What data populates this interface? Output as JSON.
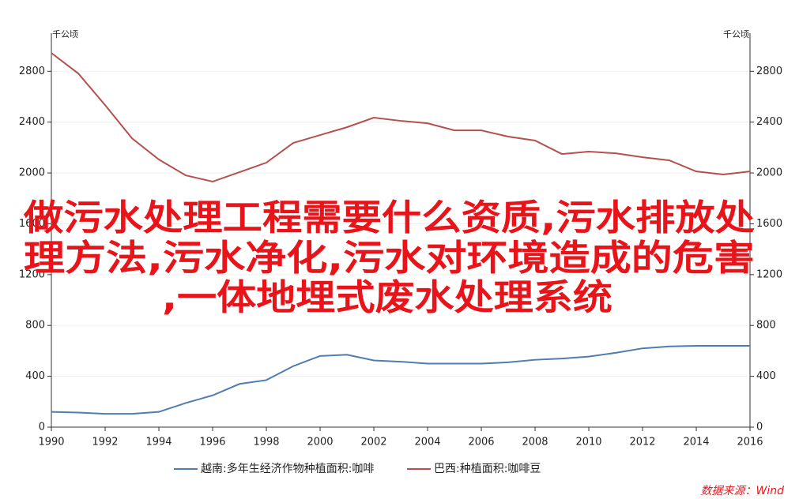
{
  "chart_data": {
    "type": "line",
    "y_label": "千公顷",
    "y2_label": "千公顷",
    "x": [
      1990,
      1991,
      1992,
      1993,
      1994,
      1995,
      1996,
      1997,
      1998,
      1999,
      2000,
      2001,
      2002,
      2003,
      2004,
      2005,
      2006,
      2007,
      2008,
      2009,
      2010,
      2011,
      2012,
      2013,
      2014,
      2015,
      2016
    ],
    "series": [
      {
        "name": "越南:多年生经济作物种植面积:咖啡",
        "color": "#4f7db0",
        "axis": "y",
        "values": [
          120,
          115,
          105,
          105,
          120,
          190,
          250,
          340,
          370,
          480,
          560,
          570,
          525,
          515,
          500,
          500,
          500,
          510,
          530,
          540,
          555,
          585,
          620,
          635,
          640,
          640,
          640
        ]
      },
      {
        "name": "巴西:种植面积:咖啡豆",
        "color": "#b5504f",
        "axis": "y2",
        "values": [
          2944,
          2783,
          2534,
          2273,
          2106,
          1981,
          1932,
          2006,
          2081,
          2236,
          2298,
          2360,
          2435,
          2410,
          2391,
          2335,
          2335,
          2286,
          2255,
          2149,
          2168,
          2155,
          2124,
          2099,
          2012,
          1988,
          2012
        ]
      }
    ],
    "xlim": [
      1990,
      2016
    ],
    "xticks": [
      1990,
      1992,
      1994,
      1996,
      1998,
      2000,
      2002,
      2004,
      2006,
      2008,
      2010,
      2012,
      2014,
      2016
    ],
    "ylim": [
      0,
      3100
    ],
    "yticks": [
      0,
      400,
      800,
      1200,
      1600,
      2000,
      2400,
      2800
    ],
    "y2lim": [
      0,
      3100
    ],
    "y2ticks": [
      0,
      400,
      800,
      1200,
      1600,
      2000,
      2400,
      2800
    ],
    "grid": true,
    "legend": "bottom",
    "source": "数据来源：Wind",
    "annotations": [
      "做污水处理工程需要什么资质,污水排放处",
      "理方法,污水净化,污水对环境造成的危害",
      ",一体地埋式废水处理系统"
    ]
  }
}
